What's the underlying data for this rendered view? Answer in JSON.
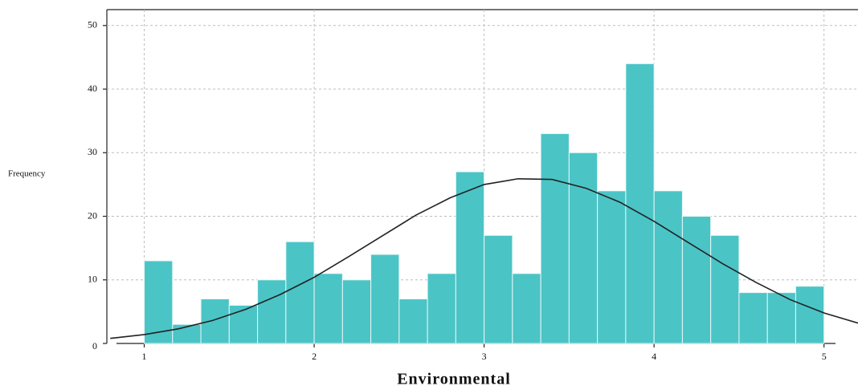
{
  "chart_data": {
    "type": "histogram",
    "x_label": "Environmental",
    "y_label": "Frequency",
    "bins": [
      1,
      1.1667,
      1.3333,
      1.5,
      1.6667,
      1.8333,
      2,
      2.1667,
      2.3333,
      2.5,
      2.6667,
      2.8333,
      3,
      3.1667,
      3.3333,
      3.5,
      3.6667,
      3.8333,
      4,
      4.1667,
      4.3333,
      4.5,
      4.6667,
      4.8333,
      5
    ],
    "values": [
      13,
      3,
      7,
      6,
      10,
      16,
      11,
      10,
      14,
      7,
      11,
      27,
      17,
      11,
      33,
      30,
      24,
      44,
      24,
      20,
      17,
      8,
      8,
      9
    ],
    "color": "#4bc4c6",
    "xlim": [
      0.78,
      5.2
    ],
    "ylim": [
      0,
      52.5
    ],
    "xticks": [
      1,
      2,
      3,
      4,
      5
    ],
    "yticks": [
      0,
      10,
      20,
      30,
      40,
      50
    ],
    "grid": true,
    "curve": {
      "type": "line",
      "color": "#222222",
      "x": [
        0.8,
        1,
        1.2,
        1.4,
        1.6,
        1.8,
        2,
        2.2,
        2.4,
        2.6,
        2.8,
        3,
        3.2,
        3.4,
        3.6,
        3.8,
        4,
        4.2,
        4.4,
        4.6,
        4.8,
        5,
        5.2
      ],
      "values": [
        0.8,
        1.4,
        2.3,
        3.6,
        5.4,
        7.7,
        10.4,
        13.6,
        16.9,
        20.2,
        22.9,
        25.0,
        25.9,
        25.8,
        24.4,
        22.2,
        19.2,
        15.9,
        12.6,
        9.6,
        6.9,
        4.8,
        3.2
      ]
    }
  }
}
